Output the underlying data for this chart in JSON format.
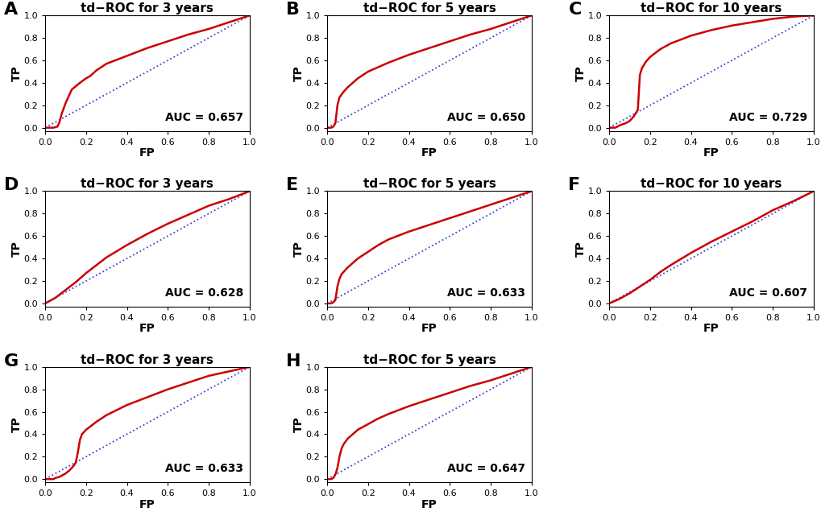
{
  "panels": [
    {
      "label": "A",
      "title": "td−ROC for 3 years",
      "auc": "0.657",
      "curve": [
        [
          0,
          0
        ],
        [
          0.04,
          0.0
        ],
        [
          0.06,
          0.01
        ],
        [
          0.07,
          0.05
        ],
        [
          0.08,
          0.12
        ],
        [
          0.1,
          0.22
        ],
        [
          0.13,
          0.34
        ],
        [
          0.17,
          0.4
        ],
        [
          0.2,
          0.44
        ],
        [
          0.22,
          0.46
        ],
        [
          0.25,
          0.51
        ],
        [
          0.3,
          0.57
        ],
        [
          0.4,
          0.64
        ],
        [
          0.5,
          0.71
        ],
        [
          0.6,
          0.77
        ],
        [
          0.7,
          0.83
        ],
        [
          0.8,
          0.88
        ],
        [
          0.9,
          0.94
        ],
        [
          1.0,
          1.0
        ]
      ]
    },
    {
      "label": "B",
      "title": "td−ROC for 5 years",
      "auc": "0.650",
      "curve": [
        [
          0,
          0
        ],
        [
          0.02,
          0.0
        ],
        [
          0.03,
          0.01
        ],
        [
          0.04,
          0.04
        ],
        [
          0.05,
          0.2
        ],
        [
          0.06,
          0.27
        ],
        [
          0.08,
          0.32
        ],
        [
          0.1,
          0.36
        ],
        [
          0.15,
          0.44
        ],
        [
          0.2,
          0.5
        ],
        [
          0.3,
          0.58
        ],
        [
          0.4,
          0.65
        ],
        [
          0.5,
          0.71
        ],
        [
          0.6,
          0.77
        ],
        [
          0.7,
          0.83
        ],
        [
          0.8,
          0.88
        ],
        [
          0.9,
          0.94
        ],
        [
          1.0,
          1.0
        ]
      ]
    },
    {
      "label": "C",
      "title": "td−ROC for 10 years",
      "auc": "0.729",
      "curve": [
        [
          0,
          0
        ],
        [
          0.03,
          0.0
        ],
        [
          0.04,
          0.01
        ],
        [
          0.05,
          0.02
        ],
        [
          0.08,
          0.04
        ],
        [
          0.1,
          0.06
        ],
        [
          0.12,
          0.1
        ],
        [
          0.14,
          0.16
        ],
        [
          0.15,
          0.47
        ],
        [
          0.16,
          0.53
        ],
        [
          0.18,
          0.59
        ],
        [
          0.2,
          0.63
        ],
        [
          0.25,
          0.7
        ],
        [
          0.3,
          0.75
        ],
        [
          0.4,
          0.82
        ],
        [
          0.5,
          0.87
        ],
        [
          0.6,
          0.91
        ],
        [
          0.7,
          0.94
        ],
        [
          0.8,
          0.97
        ],
        [
          0.9,
          0.99
        ],
        [
          1.0,
          1.0
        ]
      ]
    },
    {
      "label": "D",
      "title": "td−ROC for 3 years",
      "auc": "0.628",
      "curve": [
        [
          0,
          0
        ],
        [
          0.05,
          0.05
        ],
        [
          0.1,
          0.12
        ],
        [
          0.15,
          0.19
        ],
        [
          0.2,
          0.27
        ],
        [
          0.25,
          0.34
        ],
        [
          0.3,
          0.41
        ],
        [
          0.4,
          0.52
        ],
        [
          0.5,
          0.62
        ],
        [
          0.6,
          0.71
        ],
        [
          0.7,
          0.79
        ],
        [
          0.8,
          0.87
        ],
        [
          0.9,
          0.93
        ],
        [
          1.0,
          1.0
        ]
      ]
    },
    {
      "label": "E",
      "title": "td−ROC for 5 years",
      "auc": "0.633",
      "curve": [
        [
          0,
          0
        ],
        [
          0.02,
          0.0
        ],
        [
          0.03,
          0.01
        ],
        [
          0.04,
          0.03
        ],
        [
          0.05,
          0.15
        ],
        [
          0.06,
          0.22
        ],
        [
          0.07,
          0.26
        ],
        [
          0.1,
          0.32
        ],
        [
          0.15,
          0.4
        ],
        [
          0.2,
          0.46
        ],
        [
          0.25,
          0.52
        ],
        [
          0.3,
          0.57
        ],
        [
          0.4,
          0.64
        ],
        [
          0.5,
          0.7
        ],
        [
          0.6,
          0.76
        ],
        [
          0.7,
          0.82
        ],
        [
          0.8,
          0.88
        ],
        [
          0.9,
          0.94
        ],
        [
          1.0,
          1.0
        ]
      ]
    },
    {
      "label": "F",
      "title": "td−ROC for 10 years",
      "auc": "0.607",
      "curve": [
        [
          0,
          0
        ],
        [
          0.05,
          0.04
        ],
        [
          0.1,
          0.09
        ],
        [
          0.15,
          0.15
        ],
        [
          0.2,
          0.21
        ],
        [
          0.25,
          0.28
        ],
        [
          0.3,
          0.34
        ],
        [
          0.4,
          0.45
        ],
        [
          0.5,
          0.55
        ],
        [
          0.6,
          0.64
        ],
        [
          0.7,
          0.73
        ],
        [
          0.8,
          0.83
        ],
        [
          0.9,
          0.91
        ],
        [
          1.0,
          1.0
        ]
      ]
    },
    {
      "label": "G",
      "title": "td−ROC for 3 years",
      "auc": "0.633",
      "curve": [
        [
          0,
          0
        ],
        [
          0.03,
          0.0
        ],
        [
          0.04,
          0.0
        ],
        [
          0.05,
          0.01
        ],
        [
          0.07,
          0.02
        ],
        [
          0.08,
          0.03
        ],
        [
          0.09,
          0.04
        ],
        [
          0.1,
          0.05
        ],
        [
          0.12,
          0.08
        ],
        [
          0.14,
          0.12
        ],
        [
          0.15,
          0.15
        ],
        [
          0.16,
          0.24
        ],
        [
          0.17,
          0.35
        ],
        [
          0.18,
          0.4
        ],
        [
          0.2,
          0.44
        ],
        [
          0.25,
          0.51
        ],
        [
          0.3,
          0.57
        ],
        [
          0.4,
          0.66
        ],
        [
          0.5,
          0.73
        ],
        [
          0.6,
          0.8
        ],
        [
          0.7,
          0.86
        ],
        [
          0.8,
          0.92
        ],
        [
          0.9,
          0.96
        ],
        [
          1.0,
          1.0
        ]
      ]
    },
    {
      "label": "H",
      "title": "td−ROC for 5 years",
      "auc": "0.647",
      "curve": [
        [
          0,
          0
        ],
        [
          0.02,
          0.0
        ],
        [
          0.03,
          0.01
        ],
        [
          0.04,
          0.04
        ],
        [
          0.05,
          0.1
        ],
        [
          0.06,
          0.2
        ],
        [
          0.07,
          0.27
        ],
        [
          0.08,
          0.31
        ],
        [
          0.1,
          0.36
        ],
        [
          0.15,
          0.44
        ],
        [
          0.2,
          0.49
        ],
        [
          0.25,
          0.54
        ],
        [
          0.3,
          0.58
        ],
        [
          0.4,
          0.65
        ],
        [
          0.5,
          0.71
        ],
        [
          0.6,
          0.77
        ],
        [
          0.7,
          0.83
        ],
        [
          0.8,
          0.88
        ],
        [
          0.9,
          0.94
        ],
        [
          1.0,
          1.0
        ]
      ]
    }
  ],
  "roc_color": "#cc0000",
  "diag_color": "#4040cc",
  "bg_color": "#ffffff",
  "label_fontsize": 16,
  "title_fontsize": 11,
  "axis_label_fontsize": 10,
  "tick_fontsize": 8,
  "auc_fontsize": 10
}
